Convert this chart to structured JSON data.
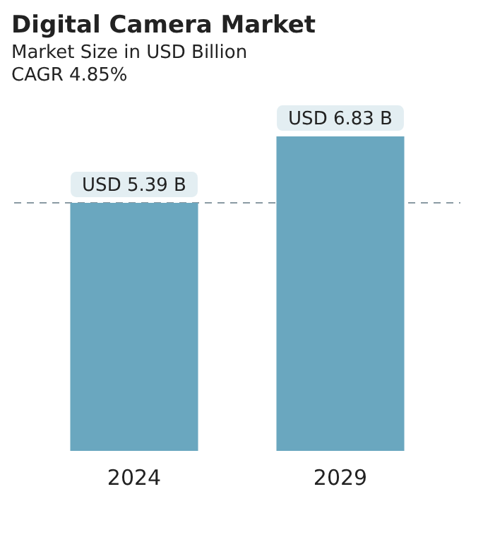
{
  "chart_data": {
    "type": "bar",
    "title": "Digital Camera Market",
    "subtitle": "Market Size in USD Billion",
    "annotations": [
      "CAGR 4.85%"
    ],
    "categories": [
      "2024",
      "2029"
    ],
    "values": [
      5.39,
      6.83
    ],
    "value_labels": [
      "USD 5.39 B",
      "USD 6.83 B"
    ],
    "color": "#6aa7bf",
    "ref_lines": [
      {
        "axis": "y",
        "value": 5.39,
        "color": "#8a9aa3",
        "line_style": "dashed"
      }
    ],
    "grid": false,
    "legend": false
  }
}
